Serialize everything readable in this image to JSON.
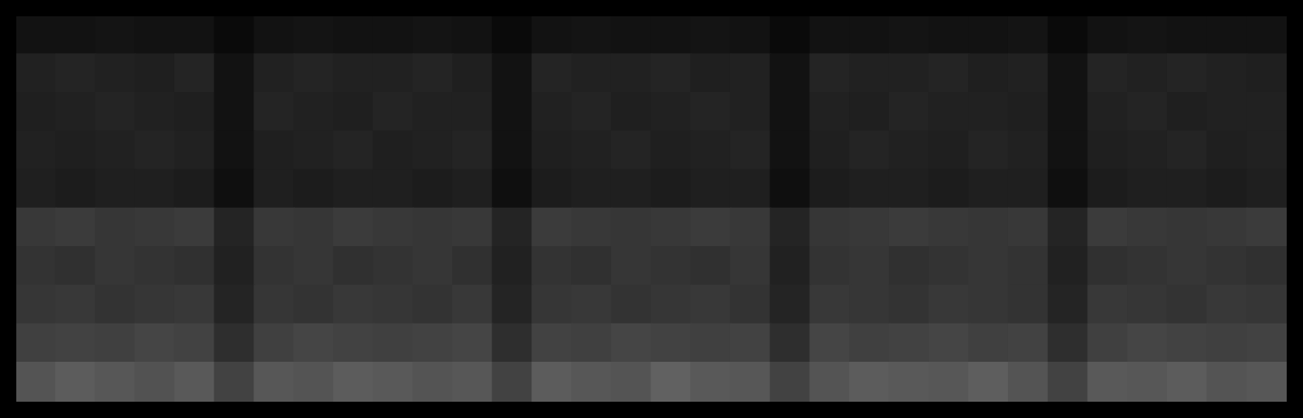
{
  "chart_data": {
    "type": "heatmap",
    "tick_labels": false,
    "grid": false,
    "cells": [
      [
        0.07,
        0.07,
        0.08,
        0.07,
        0.07,
        0.04,
        0.07,
        0.08,
        0.07,
        0.07,
        0.08,
        0.07,
        0.04,
        0.07,
        0.08,
        0.07,
        0.07,
        0.08,
        0.07,
        0.04,
        0.07,
        0.07,
        0.08,
        0.07,
        0.07,
        0.08,
        0.04,
        0.07,
        0.08,
        0.07,
        0.07,
        0.07
      ],
      [
        0.13,
        0.14,
        0.13,
        0.12,
        0.14,
        0.07,
        0.13,
        0.14,
        0.13,
        0.13,
        0.14,
        0.12,
        0.07,
        0.14,
        0.13,
        0.13,
        0.14,
        0.12,
        0.13,
        0.07,
        0.14,
        0.13,
        0.13,
        0.14,
        0.12,
        0.13,
        0.07,
        0.14,
        0.13,
        0.14,
        0.13,
        0.12
      ],
      [
        0.12,
        0.13,
        0.14,
        0.13,
        0.12,
        0.07,
        0.14,
        0.13,
        0.12,
        0.14,
        0.13,
        0.13,
        0.07,
        0.13,
        0.14,
        0.12,
        0.13,
        0.14,
        0.13,
        0.07,
        0.13,
        0.12,
        0.14,
        0.13,
        0.13,
        0.12,
        0.07,
        0.13,
        0.14,
        0.12,
        0.13,
        0.13
      ],
      [
        0.13,
        0.12,
        0.13,
        0.14,
        0.13,
        0.07,
        0.12,
        0.13,
        0.14,
        0.12,
        0.13,
        0.14,
        0.07,
        0.12,
        0.13,
        0.14,
        0.12,
        0.13,
        0.14,
        0.07,
        0.12,
        0.14,
        0.13,
        0.12,
        0.14,
        0.13,
        0.07,
        0.12,
        0.13,
        0.14,
        0.12,
        0.13
      ],
      [
        0.12,
        0.11,
        0.12,
        0.12,
        0.11,
        0.06,
        0.12,
        0.11,
        0.12,
        0.12,
        0.11,
        0.12,
        0.06,
        0.11,
        0.12,
        0.12,
        0.11,
        0.12,
        0.12,
        0.06,
        0.11,
        0.12,
        0.12,
        0.11,
        0.12,
        0.12,
        0.06,
        0.11,
        0.12,
        0.12,
        0.11,
        0.12
      ],
      [
        0.22,
        0.23,
        0.21,
        0.22,
        0.23,
        0.14,
        0.22,
        0.21,
        0.23,
        0.22,
        0.21,
        0.22,
        0.14,
        0.23,
        0.22,
        0.21,
        0.22,
        0.23,
        0.22,
        0.14,
        0.21,
        0.22,
        0.23,
        0.22,
        0.21,
        0.22,
        0.14,
        0.23,
        0.22,
        0.21,
        0.22,
        0.23
      ],
      [
        0.2,
        0.19,
        0.21,
        0.2,
        0.19,
        0.13,
        0.2,
        0.21,
        0.19,
        0.2,
        0.21,
        0.19,
        0.13,
        0.2,
        0.19,
        0.21,
        0.2,
        0.19,
        0.21,
        0.13,
        0.2,
        0.21,
        0.19,
        0.2,
        0.21,
        0.2,
        0.13,
        0.19,
        0.2,
        0.21,
        0.2,
        0.19
      ],
      [
        0.21,
        0.22,
        0.2,
        0.21,
        0.22,
        0.14,
        0.21,
        0.2,
        0.22,
        0.21,
        0.2,
        0.22,
        0.14,
        0.21,
        0.22,
        0.2,
        0.21,
        0.22,
        0.2,
        0.14,
        0.22,
        0.21,
        0.2,
        0.22,
        0.21,
        0.2,
        0.14,
        0.22,
        0.21,
        0.2,
        0.22,
        0.21
      ],
      [
        0.25,
        0.26,
        0.25,
        0.27,
        0.26,
        0.18,
        0.25,
        0.27,
        0.26,
        0.25,
        0.26,
        0.27,
        0.18,
        0.26,
        0.25,
        0.27,
        0.26,
        0.25,
        0.26,
        0.18,
        0.27,
        0.25,
        0.26,
        0.27,
        0.25,
        0.26,
        0.18,
        0.25,
        0.27,
        0.26,
        0.25,
        0.26
      ],
      [
        0.33,
        0.36,
        0.34,
        0.32,
        0.35,
        0.26,
        0.34,
        0.33,
        0.36,
        0.35,
        0.33,
        0.34,
        0.26,
        0.36,
        0.34,
        0.33,
        0.38,
        0.35,
        0.34,
        0.26,
        0.33,
        0.36,
        0.35,
        0.34,
        0.37,
        0.33,
        0.26,
        0.35,
        0.34,
        0.36,
        0.33,
        0.34
      ]
    ]
  }
}
